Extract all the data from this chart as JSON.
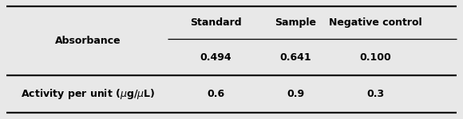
{
  "col_headers": [
    "Standard",
    "Sample",
    "Negative control"
  ],
  "row1_label": "Absorbance",
  "row1_subheader_values": [
    "0.494",
    "0.641",
    "0.100"
  ],
  "row2_label": "Activity per unit (μg/μL)",
  "row2_values": [
    "0.6",
    "0.9",
    "0.3"
  ],
  "bg_color": "#e8e8e8",
  "fig_bg": "#e8e8e8",
  "lw_thick": 1.6,
  "lw_thin": 0.9,
  "fontsize": 9
}
